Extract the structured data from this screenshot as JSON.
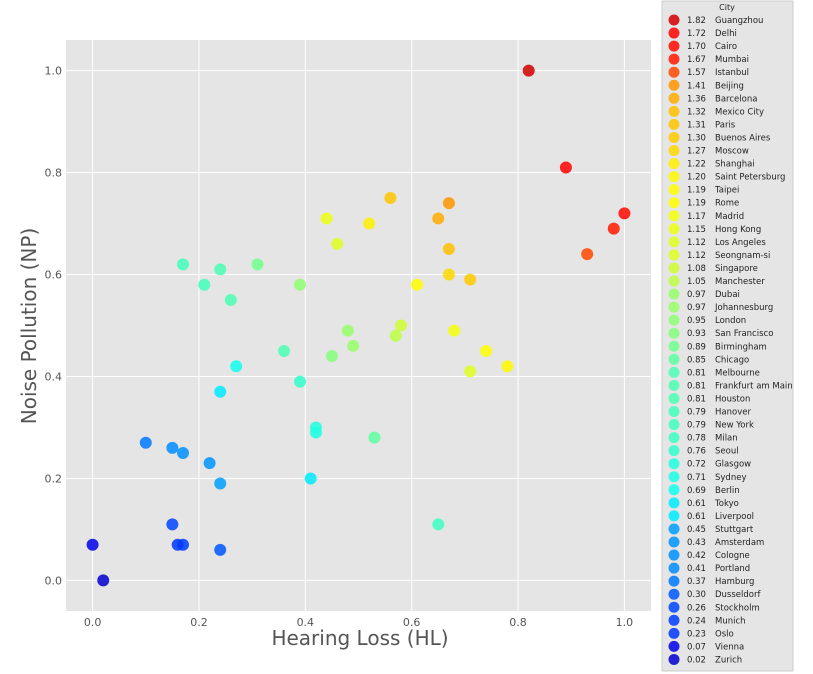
{
  "chart_data": {
    "type": "scatter",
    "title": "",
    "xlabel": "Hearing Loss (HL)",
    "ylabel": "Noise Pollution (NP)",
    "xlim": [
      -0.05,
      1.05
    ],
    "ylim": [
      -0.06,
      1.06
    ],
    "xticks": [
      "0.0",
      "0.2",
      "0.4",
      "0.6",
      "0.8",
      "1.0"
    ],
    "yticks": [
      "0.0",
      "0.2",
      "0.4",
      "0.6",
      "0.8",
      "1.0"
    ],
    "grid": true,
    "legend_title": "City",
    "legend_placement": "right",
    "color_scale": "jet (by index value)",
    "points": [
      {
        "city": "Guangzhou",
        "value": "1.82",
        "x": 0.82,
        "y": 1.0
      },
      {
        "city": "Delhi",
        "value": "1.72",
        "x": 0.89,
        "y": 0.81
      },
      {
        "city": "Cairo",
        "value": "1.70",
        "x": 1.0,
        "y": 0.72
      },
      {
        "city": "Mumbai",
        "value": "1.67",
        "x": 0.98,
        "y": 0.69
      },
      {
        "city": "Istanbul",
        "value": "1.57",
        "x": 0.93,
        "y": 0.64
      },
      {
        "city": "Beijing",
        "value": "1.41",
        "x": 0.67,
        "y": 0.74
      },
      {
        "city": "Barcelona",
        "value": "1.36",
        "x": 0.65,
        "y": 0.71
      },
      {
        "city": "Mexico City",
        "value": "1.32",
        "x": 0.67,
        "y": 0.65
      },
      {
        "city": "Paris",
        "value": "1.31",
        "x": 0.56,
        "y": 0.75
      },
      {
        "city": "Buenos Aires",
        "value": "1.30",
        "x": 0.71,
        "y": 0.59
      },
      {
        "city": "Moscow",
        "value": "1.27",
        "x": 0.67,
        "y": 0.6
      },
      {
        "city": "Shanghai",
        "value": "1.22",
        "x": 0.52,
        "y": 0.7
      },
      {
        "city": "Saint Petersburg",
        "value": "1.20",
        "x": 0.78,
        "y": 0.42
      },
      {
        "city": "Taipei",
        "value": "1.19",
        "x": 0.74,
        "y": 0.45
      },
      {
        "city": "Rome",
        "value": "1.19",
        "x": 0.61,
        "y": 0.58
      },
      {
        "city": "Madrid",
        "value": "1.17",
        "x": 0.68,
        "y": 0.49
      },
      {
        "city": "Hong Kong",
        "value": "1.15",
        "x": 0.44,
        "y": 0.71
      },
      {
        "city": "Los Angeles",
        "value": "1.12",
        "x": 0.46,
        "y": 0.66
      },
      {
        "city": "Seongnam-si",
        "value": "1.12",
        "x": 0.71,
        "y": 0.41
      },
      {
        "city": "Singapore",
        "value": "1.08",
        "x": 0.58,
        "y": 0.5
      },
      {
        "city": "Manchester",
        "value": "1.05",
        "x": 0.57,
        "y": 0.48
      },
      {
        "city": "Dubai",
        "value": "0.97",
        "x": 0.48,
        "y": 0.49
      },
      {
        "city": "Johannesburg",
        "value": "0.97",
        "x": 0.49,
        "y": 0.46
      },
      {
        "city": "London",
        "value": "0.95",
        "x": 0.39,
        "y": 0.58
      },
      {
        "city": "San Francisco",
        "value": "0.93",
        "x": 0.45,
        "y": 0.44
      },
      {
        "city": "Birmingham",
        "value": "0.89",
        "x": 0.31,
        "y": 0.62
      },
      {
        "city": "Chicago",
        "value": "0.85",
        "x": 0.53,
        "y": 0.28
      },
      {
        "city": "Melbourne",
        "value": "0.81",
        "x": 0.24,
        "y": 0.61
      },
      {
        "city": "Frankfurt am Main",
        "value": "0.81",
        "x": 0.36,
        "y": 0.45
      },
      {
        "city": "Houston",
        "value": "0.81",
        "x": 0.26,
        "y": 0.55
      },
      {
        "city": "Hanover",
        "value": "0.79",
        "x": 0.17,
        "y": 0.62
      },
      {
        "city": "New York",
        "value": "0.79",
        "x": 0.21,
        "y": 0.58
      },
      {
        "city": "Milan",
        "value": "0.78",
        "x": 0.65,
        "y": 0.11
      },
      {
        "city": "Seoul",
        "value": "0.76",
        "x": 0.39,
        "y": 0.39
      },
      {
        "city": "Glasgow",
        "value": "0.72",
        "x": 0.42,
        "y": 0.3
      },
      {
        "city": "Sydney",
        "value": "0.71",
        "x": 0.42,
        "y": 0.29
      },
      {
        "city": "Berlin",
        "value": "0.69",
        "x": 0.27,
        "y": 0.42
      },
      {
        "city": "Tokyo",
        "value": "0.61",
        "x": 0.24,
        "y": 0.37
      },
      {
        "city": "Liverpool",
        "value": "0.61",
        "x": 0.41,
        "y": 0.2
      },
      {
        "city": "Stuttgart",
        "value": "0.45",
        "x": 0.24,
        "y": 0.19
      },
      {
        "city": "Amsterdam",
        "value": "0.43",
        "x": 0.22,
        "y": 0.23
      },
      {
        "city": "Cologne",
        "value": "0.42",
        "x": 0.17,
        "y": 0.25
      },
      {
        "city": "Portland",
        "value": "0.41",
        "x": 0.15,
        "y": 0.26
      },
      {
        "city": "Hamburg",
        "value": "0.37",
        "x": 0.1,
        "y": 0.27
      },
      {
        "city": "Dusseldorf",
        "value": "0.30",
        "x": 0.24,
        "y": 0.06
      },
      {
        "city": "Stockholm",
        "value": "0.26",
        "x": 0.15,
        "y": 0.11
      },
      {
        "city": "Munich",
        "value": "0.24",
        "x": 0.17,
        "y": 0.07
      },
      {
        "city": "Oslo",
        "value": "0.23",
        "x": 0.16,
        "y": 0.07
      },
      {
        "city": "Vienna",
        "value": "0.07",
        "x": 0.0,
        "y": 0.07
      },
      {
        "city": "Zurich",
        "value": "0.02",
        "x": 0.02,
        "y": 0.0
      }
    ]
  }
}
